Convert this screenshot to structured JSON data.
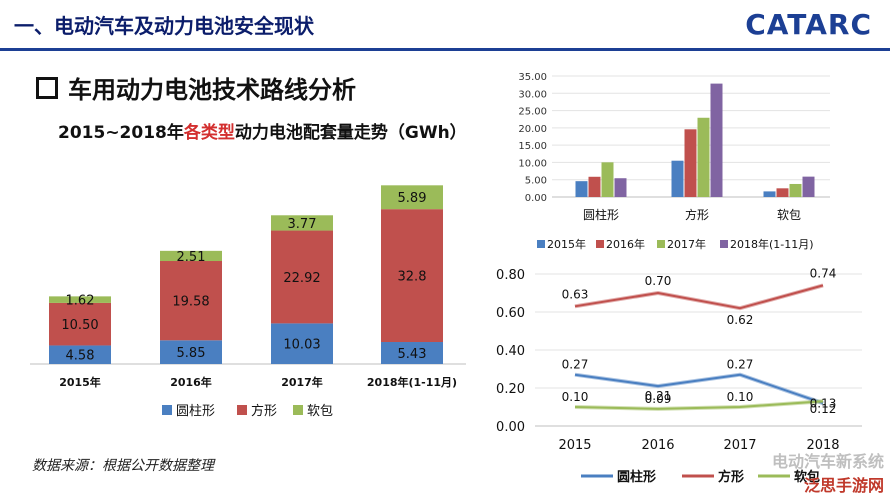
{
  "header": {
    "title": "一、电动汽车及动力电池安全现状",
    "logo": "CATARC"
  },
  "section_title": "车用动力电池技术路线分析",
  "left_chart_title": {
    "part1": "2015~2018年",
    "highlight": "各类型",
    "part2": "动力电池配套量走势（GWh）"
  },
  "source_note": "数据来源：根据公开数据整理",
  "watermark": {
    "line1": "电动汽车新系统",
    "line2": "泛思手游网"
  },
  "colors": {
    "blue": "#4a7fc1",
    "red": "#c0504d",
    "green": "#9bbb59",
    "purple": "#8064a2"
  },
  "chart_data": [
    {
      "type": "bar",
      "stacked": true,
      "categories": [
        "2015年",
        "2016年",
        "2017年",
        "2018年(1-11月)"
      ],
      "series": [
        {
          "name": "圆柱形",
          "values": [
            4.58,
            5.85,
            10.03,
            5.43
          ],
          "labels": [
            "4.58",
            "5.85",
            "10.03",
            "5.43"
          ]
        },
        {
          "name": "方形",
          "values": [
            10.5,
            19.58,
            22.92,
            32.8
          ],
          "labels": [
            "10.50",
            "19.58",
            "22.92",
            "32.8"
          ]
        },
        {
          "name": "软包",
          "values": [
            1.62,
            2.51,
            3.77,
            5.89
          ],
          "labels": [
            "1.62",
            "2.51",
            "3.77",
            "5.89"
          ]
        }
      ],
      "legend_placement": "bottom",
      "grid": false
    },
    {
      "type": "bar",
      "categories": [
        "圆柱形",
        "方形",
        "软包"
      ],
      "series": [
        {
          "name": "2015年",
          "values": [
            4.58,
            10.5,
            1.62
          ]
        },
        {
          "name": "2016年",
          "values": [
            5.85,
            19.58,
            2.51
          ]
        },
        {
          "name": "2017年",
          "values": [
            10.03,
            22.92,
            3.77
          ]
        },
        {
          "name": "2018年(1-11月)",
          "values": [
            5.43,
            32.8,
            5.89
          ]
        }
      ],
      "ylim": [
        0,
        35
      ],
      "yticks": [
        "0.00",
        "5.00",
        "10.00",
        "15.00",
        "20.00",
        "25.00",
        "30.00",
        "35.00"
      ],
      "legend_placement": "bottom",
      "grid": true
    },
    {
      "type": "line",
      "x": [
        "2015",
        "2016",
        "2017",
        "2018"
      ],
      "series": [
        {
          "name": "圆柱形",
          "values": [
            0.27,
            0.21,
            0.27,
            0.12
          ],
          "labels": [
            "0.27",
            "0.21",
            "0.27",
            "0.12"
          ]
        },
        {
          "name": "方形",
          "values": [
            0.63,
            0.7,
            0.62,
            0.74
          ],
          "labels": [
            "0.63",
            "0.70",
            "0.62",
            "0.74"
          ]
        },
        {
          "name": "软包",
          "values": [
            0.1,
            0.09,
            0.1,
            0.13
          ],
          "labels": [
            "0.10",
            "0.09",
            "0.10",
            "0.13"
          ]
        }
      ],
      "ylim": [
        0,
        0.8
      ],
      "yticks": [
        "0.00",
        "0.20",
        "0.40",
        "0.60",
        "0.80"
      ],
      "legend_placement": "bottom",
      "grid": true
    }
  ]
}
